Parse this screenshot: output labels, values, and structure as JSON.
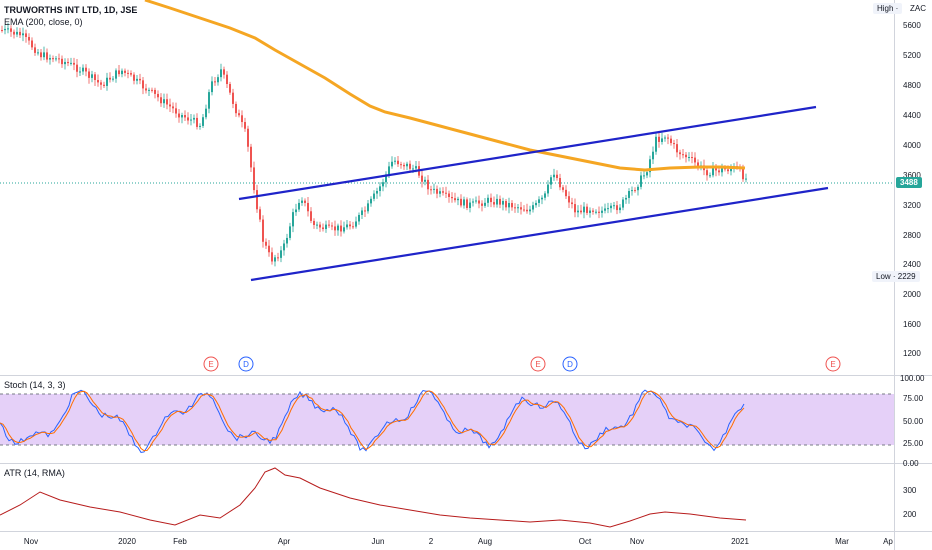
{
  "header": {
    "symbol_title": "TRUWORTHS INT LTD, 1D, JSE",
    "ema_label": "EMA (200, close, 0)"
  },
  "price_axis": {
    "high_badge": "High ·",
    "currency": "ZAC",
    "low_badge": "Low · 2229",
    "last_price": "3488",
    "ticks": [
      "5600",
      "5200",
      "4800",
      "4400",
      "4000",
      "3600",
      "3200",
      "2800",
      "2400",
      "2000",
      "1600",
      "1200"
    ]
  },
  "events": [
    "E",
    "D",
    "E",
    "D",
    "E"
  ],
  "stoch": {
    "title": "Stoch (14, 3, 3)",
    "ticks": [
      "100.00",
      "75.00",
      "50.00",
      "25.00",
      "0.00"
    ]
  },
  "atr": {
    "title": "ATR (14, RMA)",
    "ticks": [
      "300",
      "200"
    ]
  },
  "time_axis": [
    "Nov",
    "2020",
    "Feb",
    "Apr",
    "Jun",
    "2",
    "Aug",
    "Oct",
    "Nov",
    "2021",
    "Mar",
    "Ap"
  ],
  "colors": {
    "candle_up": "#26a69a",
    "candle_down": "#ef5350",
    "ema": "#f5a623",
    "channel": "#1f24c9",
    "stoch_k": "#2962ff",
    "stoch_d": "#ff6d00",
    "stoch_band": "#e1c8f7",
    "atr": "#b71c1c",
    "last_price": "#26a69a"
  }
}
